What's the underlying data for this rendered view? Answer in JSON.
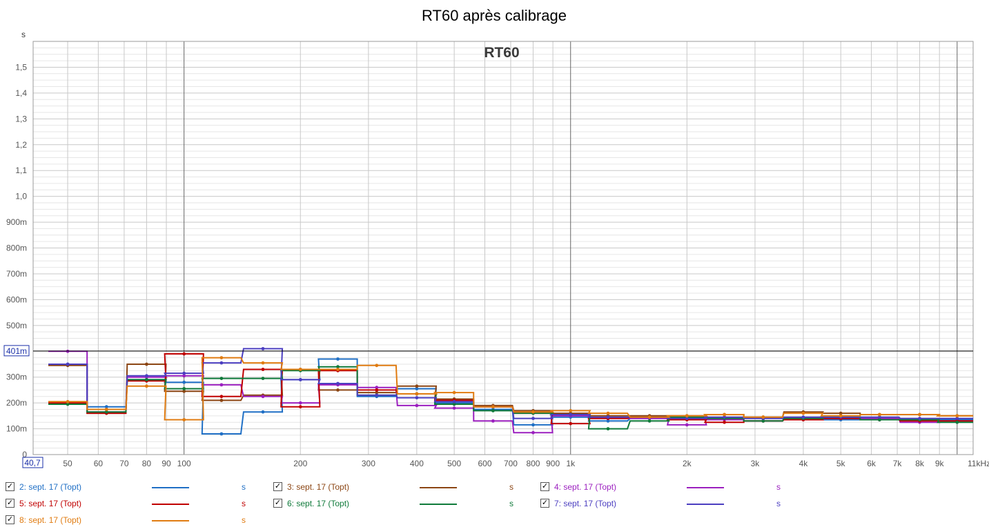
{
  "title": "RT60 après calibrage",
  "chart_data": {
    "type": "line",
    "step": true,
    "inner_title": "RT60",
    "yunit": "s",
    "x_scale": "log",
    "xlim": [
      40.7,
      11000
    ],
    "ylim": [
      0,
      1.6
    ],
    "x_start_label": "40,7",
    "x_tick_labels": [
      {
        "v": 50,
        "t": "50"
      },
      {
        "v": 60,
        "t": "60"
      },
      {
        "v": 70,
        "t": "70"
      },
      {
        "v": 80,
        "t": "80"
      },
      {
        "v": 90,
        "t": "90"
      },
      {
        "v": 100,
        "t": "100"
      },
      {
        "v": 200,
        "t": "200"
      },
      {
        "v": 300,
        "t": "300"
      },
      {
        "v": 400,
        "t": "400"
      },
      {
        "v": 500,
        "t": "500"
      },
      {
        "v": 600,
        "t": "600"
      },
      {
        "v": 700,
        "t": "700"
      },
      {
        "v": 800,
        "t": "800"
      },
      {
        "v": 900,
        "t": "900"
      },
      {
        "v": 1000,
        "t": "1k"
      },
      {
        "v": 2000,
        "t": "2k"
      },
      {
        "v": 3000,
        "t": "3k"
      },
      {
        "v": 4000,
        "t": "4k"
      },
      {
        "v": 5000,
        "t": "5k"
      },
      {
        "v": 6000,
        "t": "6k"
      },
      {
        "v": 7000,
        "t": "7k"
      },
      {
        "v": 8000,
        "t": "8k"
      },
      {
        "v": 9000,
        "t": "9k"
      },
      {
        "v": 11000,
        "t": "11kHz"
      }
    ],
    "y_tick_labels": [
      {
        "v": 0,
        "t": "0"
      },
      {
        "v": 0.1,
        "t": "100m"
      },
      {
        "v": 0.2,
        "t": "200m"
      },
      {
        "v": 0.3,
        "t": "300m"
      },
      {
        "v": 0.4,
        "t": "400m"
      },
      {
        "v": 0.5,
        "t": "500m"
      },
      {
        "v": 0.6,
        "t": "600m"
      },
      {
        "v": 0.7,
        "t": "700m"
      },
      {
        "v": 0.8,
        "t": "800m"
      },
      {
        "v": 0.9,
        "t": "900m"
      },
      {
        "v": 1.0,
        "t": "1,0"
      },
      {
        "v": 1.1,
        "t": "1,1"
      },
      {
        "v": 1.2,
        "t": "1,2"
      },
      {
        "v": 1.3,
        "t": "1,3"
      },
      {
        "v": 1.4,
        "t": "1,4"
      },
      {
        "v": 1.5,
        "t": "1,5"
      }
    ],
    "cursor": {
      "value": 0.401,
      "label": "401m"
    },
    "bands": [
      50,
      63,
      80,
      100,
      125,
      160,
      200,
      250,
      315,
      400,
      500,
      630,
      800,
      1000,
      1250,
      1600,
      2000,
      2500,
      3150,
      4000,
      5000,
      6300,
      8000,
      10000
    ],
    "series": [
      {
        "name": "2: sept. 17 (Topt)",
        "color": "#1f6fc5",
        "values": [
          0.35,
          0.185,
          0.29,
          0.28,
          0.08,
          0.165,
          0.29,
          0.37,
          0.225,
          0.255,
          0.2,
          0.175,
          0.115,
          0.145,
          0.13,
          0.14,
          0.14,
          0.14,
          0.14,
          0.14,
          0.135,
          0.135,
          0.135,
          0.135
        ]
      },
      {
        "name": "3: sept. 17 (Topt)",
        "color": "#8b4513",
        "values": [
          0.345,
          0.16,
          0.35,
          0.245,
          0.21,
          0.23,
          0.33,
          0.25,
          0.24,
          0.265,
          0.215,
          0.19,
          0.17,
          0.16,
          0.15,
          0.15,
          0.15,
          0.155,
          0.145,
          0.165,
          0.16,
          0.155,
          0.155,
          0.15
        ]
      },
      {
        "name": "4: sept. 17 (Topt)",
        "color": "#9b1fbf",
        "values": [
          0.4,
          0.165,
          0.3,
          0.305,
          0.27,
          0.225,
          0.2,
          0.27,
          0.26,
          0.19,
          0.18,
          0.13,
          0.085,
          0.15,
          0.14,
          0.14,
          0.115,
          0.135,
          0.13,
          0.14,
          0.14,
          0.14,
          0.125,
          0.13
        ]
      },
      {
        "name": "5: sept. 17 (Topt)",
        "color": "#c00000",
        "values": [
          0.2,
          0.16,
          0.285,
          0.39,
          0.225,
          0.33,
          0.185,
          0.325,
          0.25,
          0.235,
          0.21,
          0.185,
          0.16,
          0.12,
          0.14,
          0.145,
          0.135,
          0.125,
          0.13,
          0.135,
          0.14,
          0.135,
          0.13,
          0.13
        ]
      },
      {
        "name": "6: sept. 17 (Topt)",
        "color": "#0f7a3a",
        "values": [
          0.195,
          0.165,
          0.29,
          0.255,
          0.295,
          0.295,
          0.325,
          0.34,
          0.23,
          0.235,
          0.195,
          0.17,
          0.16,
          0.155,
          0.1,
          0.13,
          0.145,
          0.14,
          0.13,
          0.14,
          0.145,
          0.135,
          0.135,
          0.125
        ]
      },
      {
        "name": "7: sept. 17 (Topt)",
        "color": "#4b3ec0",
        "values": [
          0.35,
          0.175,
          0.305,
          0.315,
          0.355,
          0.41,
          0.29,
          0.275,
          0.23,
          0.22,
          0.205,
          0.185,
          0.14,
          0.155,
          0.145,
          0.145,
          0.14,
          0.145,
          0.14,
          0.145,
          0.145,
          0.145,
          0.14,
          0.14
        ]
      },
      {
        "name": "8: sept. 17 (Topt)",
        "color": "#e07b10",
        "values": [
          0.205,
          0.175,
          0.265,
          0.135,
          0.375,
          0.355,
          0.33,
          0.33,
          0.345,
          0.235,
          0.24,
          0.185,
          0.165,
          0.17,
          0.16,
          0.145,
          0.15,
          0.155,
          0.145,
          0.16,
          0.15,
          0.155,
          0.155,
          0.15
        ]
      }
    ]
  },
  "legend": {
    "checked_glyph": "✓",
    "unit": "s"
  }
}
